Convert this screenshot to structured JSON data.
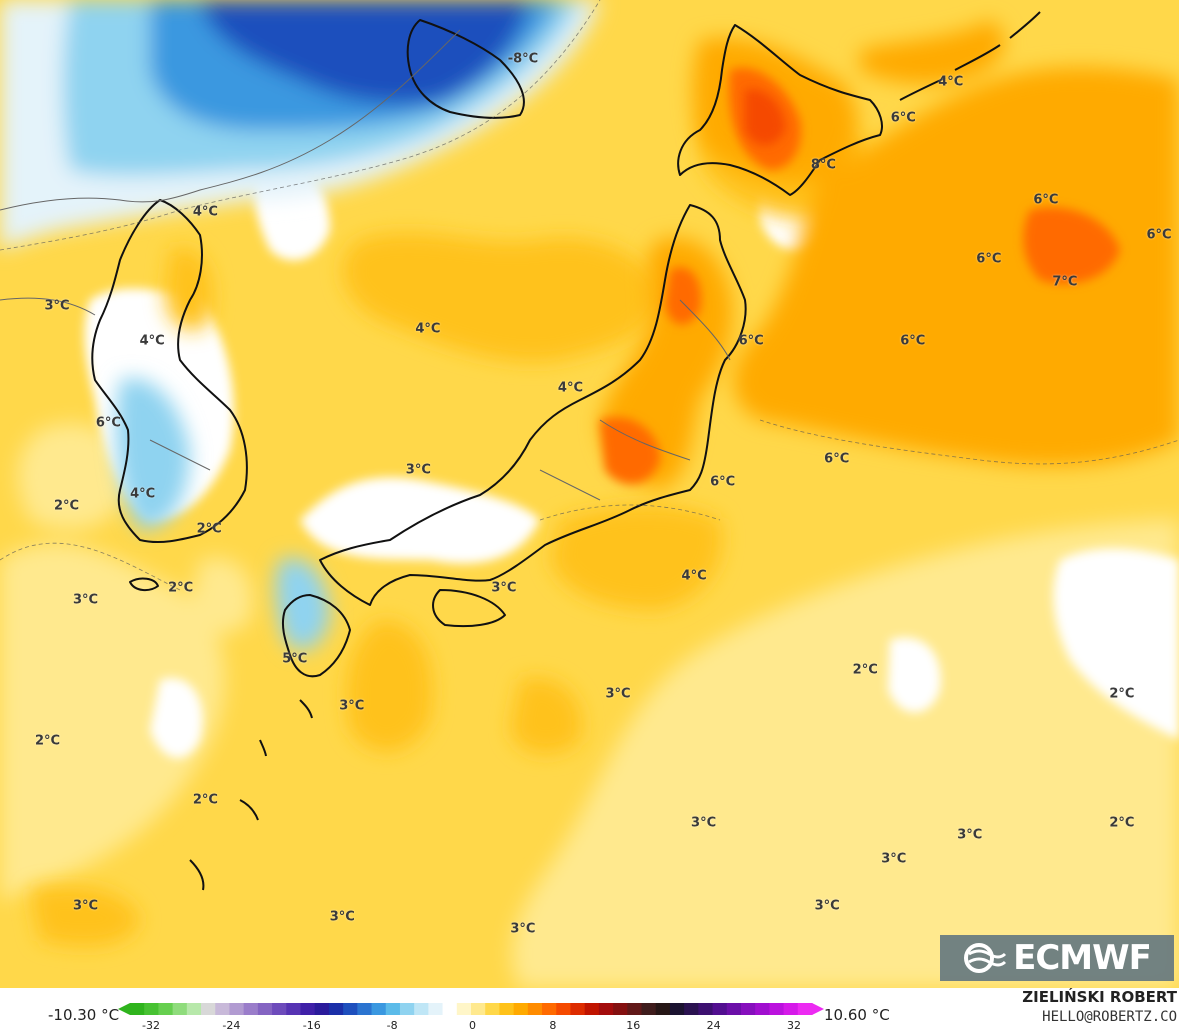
{
  "map": {
    "temperature_labels": [
      {
        "text": "-8°C",
        "lon": 145.5,
        "lat": 52.5
      },
      {
        "text": "8°C",
        "lon": 161.3,
        "lat": 48.0
      },
      {
        "text": "4°C",
        "lon": 168.0,
        "lat": 51.5
      },
      {
        "text": "6°C",
        "lon": 165.5,
        "lat": 50.0
      },
      {
        "text": "6°C",
        "lon": 173.0,
        "lat": 46.5
      },
      {
        "text": "6°C",
        "lon": 179.5,
        "lat": 45.0
      },
      {
        "text": "6°C",
        "lon": 170.0,
        "lat": 44.0
      },
      {
        "text": "7°C",
        "lon": 174.0,
        "lat": 43.0
      },
      {
        "text": "6°C",
        "lon": 166.0,
        "lat": 40.5
      },
      {
        "text": "4°C",
        "lon": 128.8,
        "lat": 46.0
      },
      {
        "text": "3°C",
        "lon": 121.0,
        "lat": 42.0
      },
      {
        "text": "4°C",
        "lon": 126.0,
        "lat": 40.5
      },
      {
        "text": "4°C",
        "lon": 140.5,
        "lat": 41.0
      },
      {
        "text": "4°C",
        "lon": 148.0,
        "lat": 38.5
      },
      {
        "text": "6°C",
        "lon": 157.5,
        "lat": 40.5
      },
      {
        "text": "6°C",
        "lon": 123.7,
        "lat": 37.0
      },
      {
        "text": "3°C",
        "lon": 140.0,
        "lat": 35.0
      },
      {
        "text": "6°C",
        "lon": 162.0,
        "lat": 35.5
      },
      {
        "text": "4°C",
        "lon": 125.5,
        "lat": 34.0
      },
      {
        "text": "6°C",
        "lon": 156.0,
        "lat": 34.5
      },
      {
        "text": "2°C",
        "lon": 121.5,
        "lat": 33.5
      },
      {
        "text": "2°C",
        "lon": 129.0,
        "lat": 32.5
      },
      {
        "text": "3°C",
        "lon": 122.5,
        "lat": 29.5
      },
      {
        "text": "2°C",
        "lon": 127.5,
        "lat": 30.0
      },
      {
        "text": "3°C",
        "lon": 144.5,
        "lat": 30.0
      },
      {
        "text": "4°C",
        "lon": 154.5,
        "lat": 30.5
      },
      {
        "text": "5°C",
        "lon": 133.5,
        "lat": 27.0
      },
      {
        "text": "2°C",
        "lon": 163.5,
        "lat": 26.5
      },
      {
        "text": "3°C",
        "lon": 136.5,
        "lat": 25.0
      },
      {
        "text": "3°C",
        "lon": 150.5,
        "lat": 25.5
      },
      {
        "text": "2°C",
        "lon": 177.0,
        "lat": 25.5
      },
      {
        "text": "2°C",
        "lon": 120.5,
        "lat": 23.5
      },
      {
        "text": "2°C",
        "lon": 128.8,
        "lat": 21.0
      },
      {
        "text": "3°C",
        "lon": 155.0,
        "lat": 20.0
      },
      {
        "text": "3°C",
        "lon": 169.0,
        "lat": 19.5
      },
      {
        "text": "2°C",
        "lon": 177.0,
        "lat": 20.0
      },
      {
        "text": "3°C",
        "lon": 165.0,
        "lat": 18.5
      },
      {
        "text": "3°C",
        "lon": 122.5,
        "lat": 16.5
      },
      {
        "text": "3°C",
        "lon": 136.0,
        "lat": 16.0
      },
      {
        "text": "3°C",
        "lon": 145.5,
        "lat": 15.5
      },
      {
        "text": "3°C",
        "lon": 161.5,
        "lat": 16.5
      }
    ]
  },
  "legend": {
    "min_label": "-10.30 °C",
    "max_label": "10.60 °C",
    "ticks": [
      "-32",
      "-24",
      "-16",
      "-8",
      "0",
      "8",
      "16",
      "24",
      "32"
    ],
    "colors": [
      "#2fb41d",
      "#47c232",
      "#66cf4f",
      "#8fdc7c",
      "#b7e8aa",
      "#d8d8d8",
      "#c8b9d9",
      "#b19bd1",
      "#9a7dca",
      "#8464c2",
      "#6d4bbb",
      "#5633b3",
      "#3f20a8",
      "#2a1b9b",
      "#1b2fa8",
      "#1e4fbd",
      "#2b74d0",
      "#3a98e0",
      "#5bbbe9",
      "#8fd3f0",
      "#bfe6f6",
      "#e4f3fa",
      "#ffffff",
      "#fff6c8",
      "#ffe98e",
      "#ffd84a",
      "#ffc21a",
      "#ffaa00",
      "#ff8c00",
      "#ff6a00",
      "#f54a00",
      "#dd2c00",
      "#c01400",
      "#a30c0c",
      "#841010",
      "#611818",
      "#3f1c1c",
      "#261616",
      "#1b1330",
      "#2a1250",
      "#3c1070",
      "#520f90",
      "#6b0fa8",
      "#860fbd",
      "#a00fcf",
      "#bb12de",
      "#d51ae9",
      "#ec2bf2"
    ]
  },
  "branding": {
    "logo_text": "ECMWF",
    "author": "ZIELIŃSKI ROBERT",
    "email": "HELLO@ROBERTZ.CO"
  }
}
